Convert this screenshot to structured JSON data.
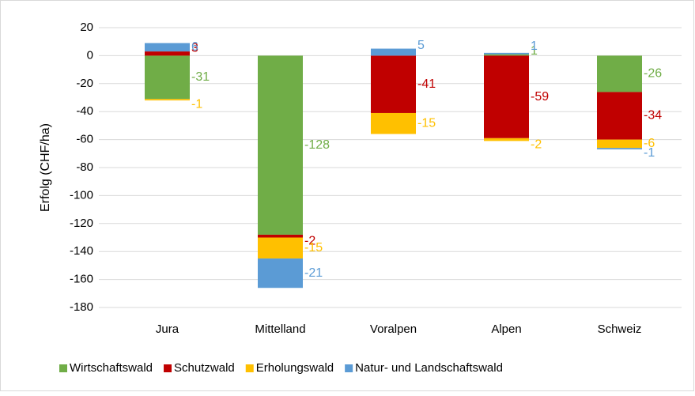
{
  "chart_data": {
    "type": "stacked_bar",
    "y_label": "Erfolg (CHF/ha)",
    "categories": [
      "Jura",
      "Mittelland",
      "Voralpen",
      "Alpen",
      "Schweiz"
    ],
    "series": [
      {
        "name": "Wirtschaftswald",
        "color": "#70ad47",
        "values": [
          -31,
          -128,
          null,
          1,
          -26
        ]
      },
      {
        "name": "Schutzwald",
        "color": "#c00000",
        "values": [
          3,
          -2,
          -41,
          -59,
          -34
        ]
      },
      {
        "name": "Erholungswald",
        "color": "#ffc000",
        "values": [
          -1,
          -15,
          -15,
          -2,
          -6
        ]
      },
      {
        "name": "Natur- und Landschaftswald",
        "color": "#5b9bd5",
        "values": [
          6,
          -21,
          5,
          1,
          -1
        ]
      }
    ],
    "ylim": [
      -180,
      20
    ],
    "yticks": [
      -180,
      -160,
      -140,
      -120,
      -100,
      -80,
      -60,
      -40,
      -20,
      0,
      20
    ],
    "grid": true,
    "legend": "bottom"
  }
}
